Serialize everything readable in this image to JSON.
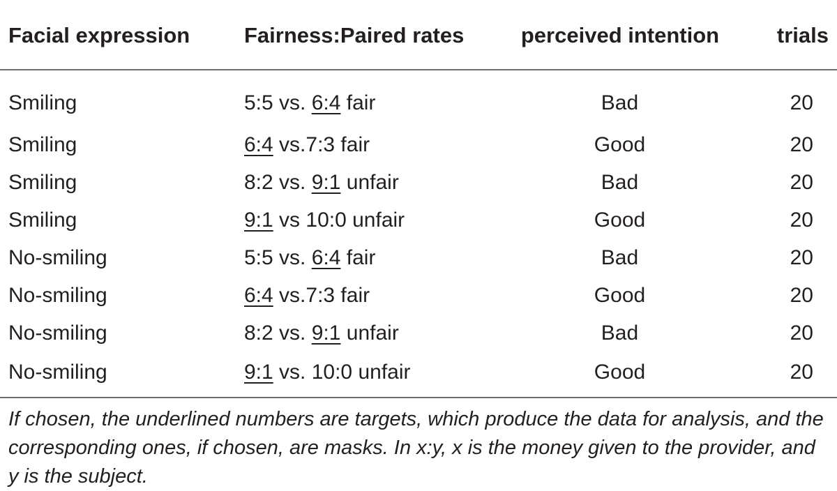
{
  "table": {
    "headers": {
      "facial_expression": "Facial expression",
      "fairness_paired_rates": "Fairness:Paired rates",
      "perceived_intention": "perceived intention",
      "trials": "trials"
    },
    "rows": [
      {
        "facial_expression": "Smiling",
        "rate_pre": "5:5 vs. ",
        "rate_target": "6:4",
        "rate_post": " fair",
        "perceived_intention": "Bad",
        "trials": "20"
      },
      {
        "facial_expression": "Smiling",
        "rate_pre": "",
        "rate_target": "6:4",
        "rate_post": " vs.7:3 fair",
        "perceived_intention": "Good",
        "trials": "20"
      },
      {
        "facial_expression": "Smiling",
        "rate_pre": "8:2 vs. ",
        "rate_target": "9:1",
        "rate_post": " unfair",
        "perceived_intention": "Bad",
        "trials": "20"
      },
      {
        "facial_expression": "Smiling",
        "rate_pre": "",
        "rate_target": "9:1",
        "rate_post": " vs 10:0 unfair",
        "perceived_intention": "Good",
        "trials": "20"
      },
      {
        "facial_expression": "No-smiling",
        "rate_pre": "5:5 vs. ",
        "rate_target": "6:4",
        "rate_post": " fair",
        "perceived_intention": "Bad",
        "trials": "20"
      },
      {
        "facial_expression": "No-smiling",
        "rate_pre": "",
        "rate_target": "6:4",
        "rate_post": " vs.7:3 fair",
        "perceived_intention": "Good",
        "trials": "20"
      },
      {
        "facial_expression": "No-smiling",
        "rate_pre": "8:2 vs. ",
        "rate_target": "9:1",
        "rate_post": " unfair",
        "perceived_intention": "Bad",
        "trials": "20"
      },
      {
        "facial_expression": "No-smiling",
        "rate_pre": "",
        "rate_target": "9:1",
        "rate_post": " vs. 10:0 unfair",
        "perceived_intention": "Good",
        "trials": "20"
      }
    ],
    "footnote": "If chosen, the underlined numbers are targets, which produce the data for analysis, and the corresponding ones, if chosen, are masks. In x:y, x is the money given to the provider, and y is the subject."
  },
  "colors": {
    "text": "#231f20",
    "rule": "#6d6e71"
  }
}
